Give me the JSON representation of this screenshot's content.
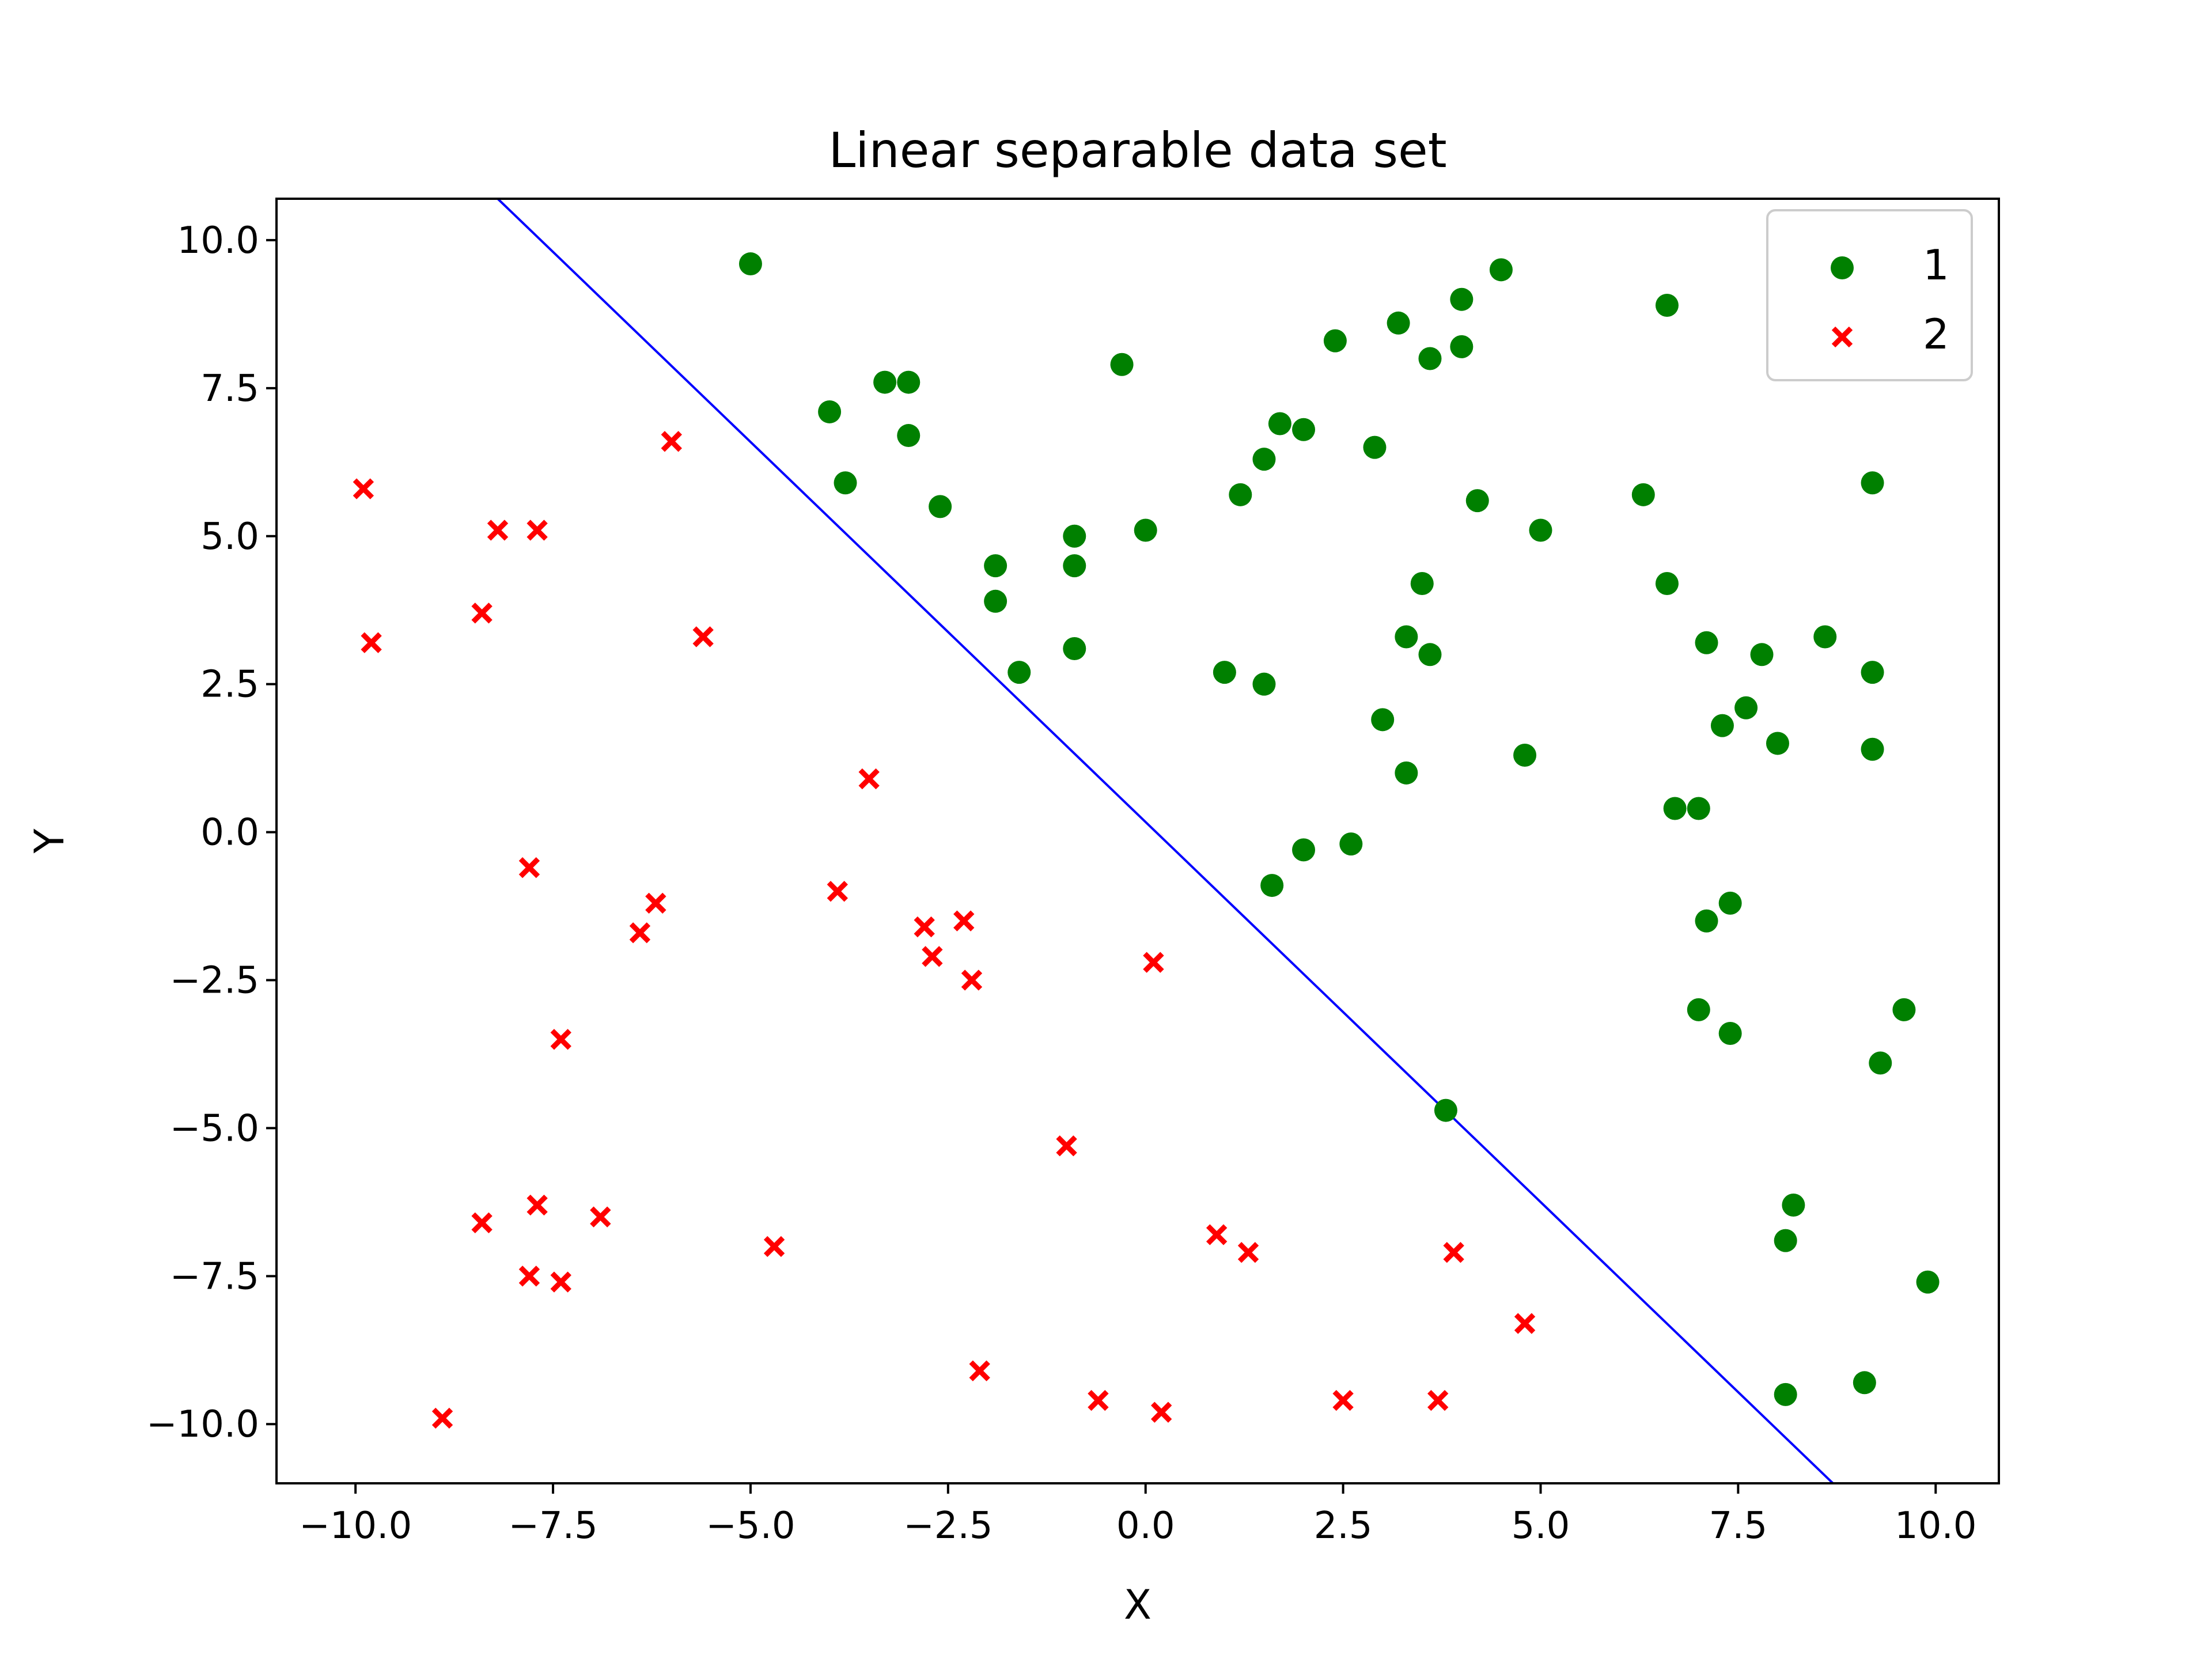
{
  "chart_data": {
    "type": "scatter",
    "title": "Linear separable data set",
    "xlabel": "X",
    "ylabel": "Y",
    "xlim": [
      -11.0,
      10.8
    ],
    "ylim": [
      -11.0,
      10.7
    ],
    "xticks": [
      -10.0,
      -7.5,
      -5.0,
      -2.5,
      0.0,
      2.5,
      5.0,
      7.5,
      10.0
    ],
    "yticks": [
      -10.0,
      -7.5,
      -5.0,
      -2.5,
      0.0,
      2.5,
      5.0,
      7.5,
      10.0
    ],
    "xtick_labels": [
      "−10.0",
      "−7.5",
      "−5.0",
      "−2.5",
      "0.0",
      "2.5",
      "5.0",
      "7.5",
      "10.0"
    ],
    "ytick_labels": [
      "−10.0",
      "−7.5",
      "−5.0",
      "−2.5",
      "0.0",
      "2.5",
      "5.0",
      "7.5",
      "10.0"
    ],
    "grid": false,
    "legend_position": "top-right",
    "line": {
      "color": "#0000ff",
      "x": [
        -8.2,
        8.7
      ],
      "y": [
        10.7,
        -11.0
      ]
    },
    "series": [
      {
        "name": "1",
        "marker": "circle",
        "color": "#008000",
        "points": [
          [
            -5.0,
            9.6
          ],
          [
            -4.0,
            7.1
          ],
          [
            -3.8,
            5.9
          ],
          [
            -3.3,
            7.6
          ],
          [
            -3.0,
            7.6
          ],
          [
            -3.0,
            6.7
          ],
          [
            -2.6,
            5.5
          ],
          [
            -1.9,
            4.5
          ],
          [
            -1.9,
            3.9
          ],
          [
            -1.6,
            2.7
          ],
          [
            -0.9,
            5.0
          ],
          [
            -0.9,
            4.5
          ],
          [
            -0.9,
            3.1
          ],
          [
            -0.3,
            7.9
          ],
          [
            0.0,
            5.1
          ],
          [
            1.0,
            2.7
          ],
          [
            1.2,
            5.7
          ],
          [
            1.5,
            6.3
          ],
          [
            1.7,
            6.9
          ],
          [
            1.5,
            2.5
          ],
          [
            1.6,
            -0.9
          ],
          [
            2.0,
            6.8
          ],
          [
            2.0,
            -0.3
          ],
          [
            2.4,
            8.3
          ],
          [
            2.6,
            -0.2
          ],
          [
            2.9,
            6.5
          ],
          [
            3.0,
            1.9
          ],
          [
            3.2,
            8.6
          ],
          [
            3.3,
            3.3
          ],
          [
            3.3,
            1.0
          ],
          [
            3.5,
            4.2
          ],
          [
            3.6,
            8.0
          ],
          [
            3.6,
            3.0
          ],
          [
            3.8,
            -4.7
          ],
          [
            4.0,
            8.2
          ],
          [
            4.0,
            9.0
          ],
          [
            4.2,
            5.6
          ],
          [
            4.5,
            9.5
          ],
          [
            4.8,
            1.3
          ],
          [
            5.0,
            5.1
          ],
          [
            6.3,
            5.7
          ],
          [
            6.6,
            4.2
          ],
          [
            6.6,
            8.9
          ],
          [
            6.7,
            0.4
          ],
          [
            7.0,
            0.4
          ],
          [
            7.1,
            3.2
          ],
          [
            7.1,
            -1.5
          ],
          [
            7.0,
            -3.0
          ],
          [
            7.3,
            1.8
          ],
          [
            7.4,
            -1.2
          ],
          [
            7.4,
            -3.4
          ],
          [
            7.6,
            2.1
          ],
          [
            7.8,
            3.0
          ],
          [
            8.0,
            1.5
          ],
          [
            8.1,
            -6.9
          ],
          [
            8.2,
            -6.3
          ],
          [
            8.1,
            -9.5
          ],
          [
            8.6,
            3.3
          ],
          [
            9.1,
            -9.3
          ],
          [
            9.2,
            5.9
          ],
          [
            9.2,
            2.7
          ],
          [
            9.2,
            1.4
          ],
          [
            9.3,
            -3.9
          ],
          [
            9.6,
            -3.0
          ],
          [
            9.9,
            -7.6
          ]
        ]
      },
      {
        "name": "2",
        "marker": "x",
        "color": "#ff0000",
        "points": [
          [
            -9.9,
            5.8
          ],
          [
            -9.8,
            3.2
          ],
          [
            -8.9,
            -9.9
          ],
          [
            -8.4,
            3.7
          ],
          [
            -8.4,
            -6.6
          ],
          [
            -8.2,
            5.1
          ],
          [
            -7.7,
            5.1
          ],
          [
            -7.8,
            -0.6
          ],
          [
            -7.7,
            -6.3
          ],
          [
            -7.8,
            -7.5
          ],
          [
            -7.4,
            -3.5
          ],
          [
            -7.4,
            -7.6
          ],
          [
            -6.9,
            -6.5
          ],
          [
            -6.4,
            -1.7
          ],
          [
            -6.2,
            -1.2
          ],
          [
            -6.0,
            6.6
          ],
          [
            -5.6,
            3.3
          ],
          [
            -4.7,
            -7.0
          ],
          [
            -3.5,
            0.9
          ],
          [
            -3.9,
            -1.0
          ],
          [
            -2.8,
            -1.6
          ],
          [
            -2.7,
            -2.1
          ],
          [
            -2.3,
            -1.5
          ],
          [
            -2.2,
            -2.5
          ],
          [
            -2.1,
            -9.1
          ],
          [
            -1.0,
            -5.3
          ],
          [
            -0.6,
            -9.6
          ],
          [
            0.1,
            -2.2
          ],
          [
            0.2,
            -9.8
          ],
          [
            0.9,
            -6.8
          ],
          [
            1.3,
            -7.1
          ],
          [
            2.5,
            -9.6
          ],
          [
            3.7,
            -9.6
          ],
          [
            3.9,
            -7.1
          ],
          [
            4.8,
            -8.3
          ]
        ]
      }
    ]
  }
}
